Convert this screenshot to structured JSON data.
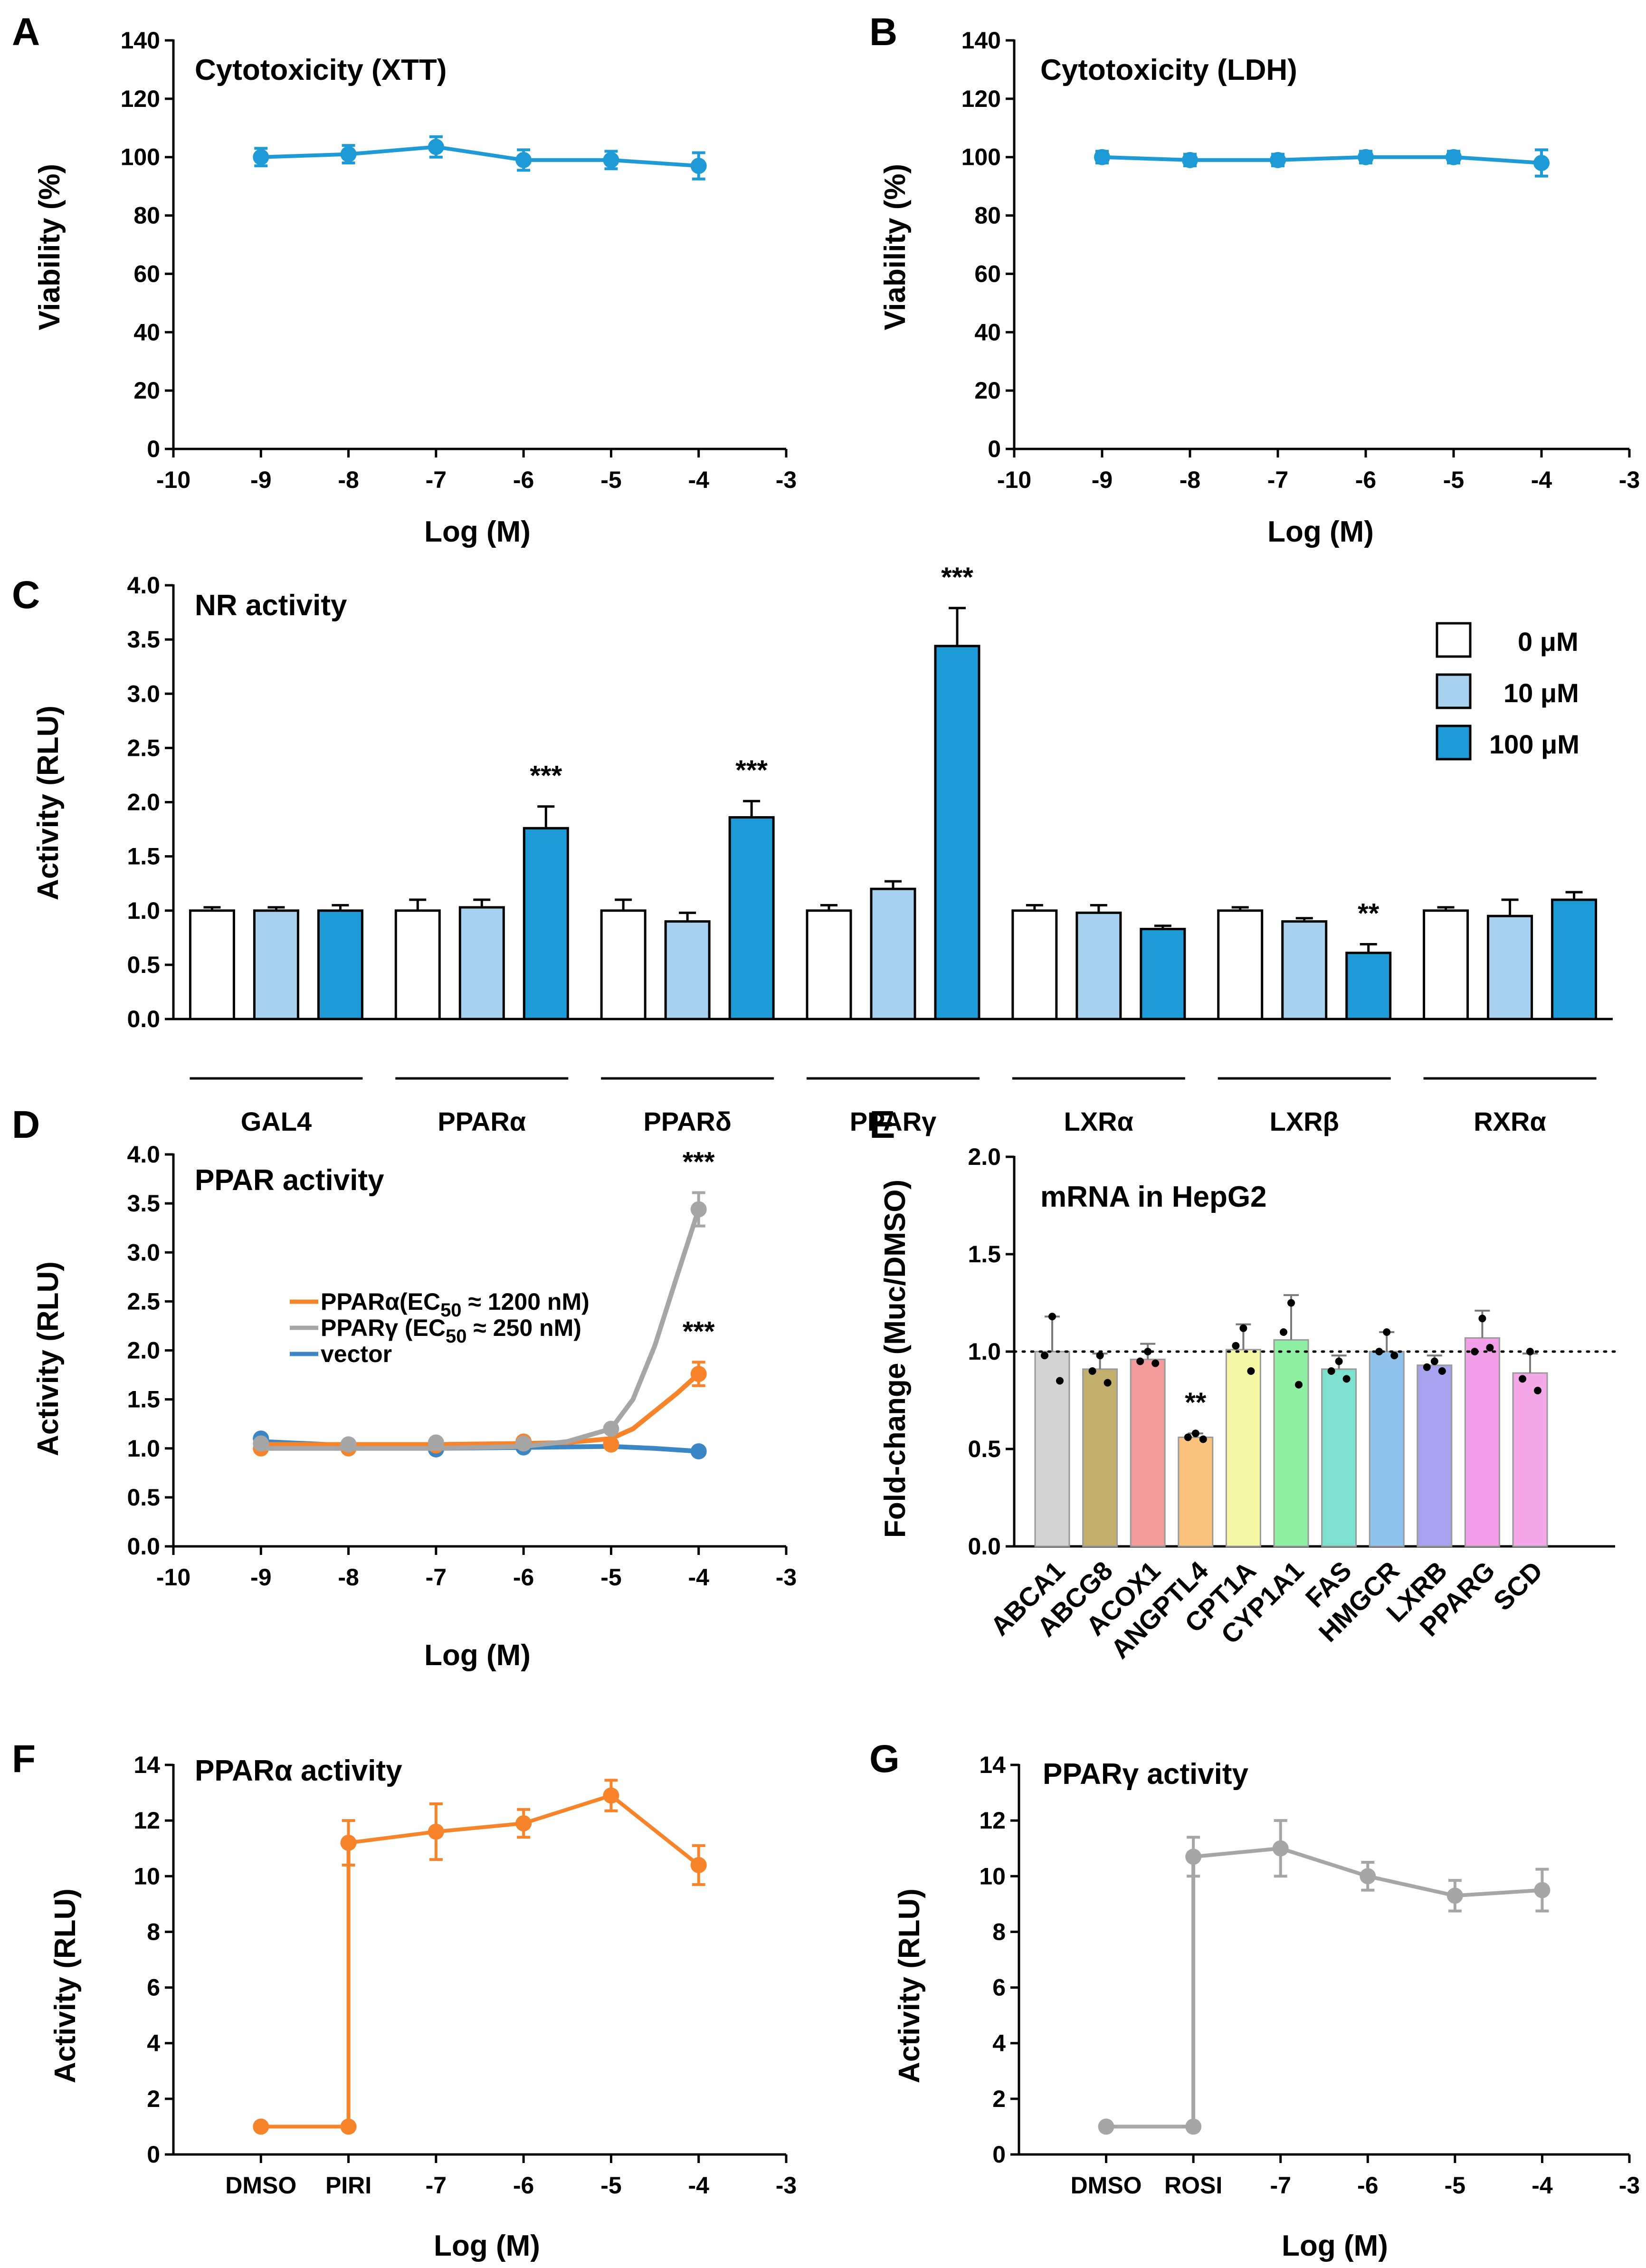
{
  "colors": {
    "blue": "#1e9ad6",
    "light_blue": "#a7d1ee",
    "orange": "#f7842a",
    "gray": "#a6a6a6",
    "vector_blue": "#3b86c5"
  },
  "chart_data": [
    {
      "id": "A",
      "panel_label": "A",
      "type": "line",
      "title": "Cytotoxicity (XTT)",
      "xlabel": "Log (M)",
      "ylabel": "Viability (%)",
      "xlim": [
        -10,
        -3
      ],
      "ylim": [
        0,
        140
      ],
      "xticks": [
        -10,
        -9,
        -8,
        -7,
        -6,
        -5,
        -4,
        -3
      ],
      "yticks": [
        0,
        20,
        40,
        60,
        80,
        100,
        120,
        140
      ],
      "series": [
        {
          "name": "XTT",
          "color": "#1e9ad6",
          "x": [
            -9,
            -8,
            -7,
            -6,
            -5,
            -4
          ],
          "y": [
            100,
            101,
            103.5,
            99,
            99,
            97
          ],
          "err": [
            3,
            3,
            3.5,
            3.5,
            3,
            4.5
          ]
        }
      ]
    },
    {
      "id": "B",
      "panel_label": "B",
      "type": "line",
      "title": "Cytotoxicity (LDH)",
      "xlabel": "Log (M)",
      "ylabel": "Viability (%)",
      "xlim": [
        -10,
        -3
      ],
      "ylim": [
        0,
        140
      ],
      "xticks": [
        -10,
        -9,
        -8,
        -7,
        -6,
        -5,
        -4,
        -3
      ],
      "yticks": [
        0,
        20,
        40,
        60,
        80,
        100,
        120,
        140
      ],
      "series": [
        {
          "name": "LDH",
          "color": "#1e9ad6",
          "x": [
            -9,
            -8,
            -7,
            -6,
            -5,
            -4
          ],
          "y": [
            100,
            99,
            99,
            100,
            100,
            98
          ],
          "err": [
            2,
            2,
            2,
            2,
            2,
            4.5
          ]
        }
      ]
    },
    {
      "id": "C",
      "panel_label": "C",
      "type": "bar",
      "title": "NR activity",
      "ylabel": "Activity (RLU)",
      "ylim": [
        0,
        4.0
      ],
      "yticks": [
        0.0,
        0.5,
        1.0,
        1.5,
        2.0,
        2.5,
        3.0,
        3.5,
        4.0
      ],
      "categories": [
        "GAL4",
        "PPARα",
        "PPARδ",
        "PPARγ",
        "LXRα",
        "LXRβ",
        "RXRα"
      ],
      "series": [
        {
          "name": "0 μM",
          "color": "#ffffff",
          "values": [
            1.0,
            1.0,
            1.0,
            1.0,
            1.0,
            1.0,
            1.0
          ],
          "err": [
            0.03,
            0.1,
            0.1,
            0.05,
            0.05,
            0.03,
            0.03
          ]
        },
        {
          "name": "10 μM",
          "color": "#a7d1ee",
          "values": [
            1.0,
            1.03,
            0.9,
            1.2,
            0.98,
            0.9,
            0.95
          ],
          "err": [
            0.03,
            0.07,
            0.08,
            0.07,
            0.07,
            0.03,
            0.15
          ]
        },
        {
          "name": "100 μM",
          "color": "#1e9ad6",
          "values": [
            1.0,
            1.76,
            1.86,
            3.44,
            0.83,
            0.61,
            1.1
          ],
          "err": [
            0.05,
            0.2,
            0.15,
            0.35,
            0.03,
            0.08,
            0.07
          ]
        }
      ],
      "significance": [
        {
          "category": "PPARα",
          "series": "100 μM",
          "label": "***"
        },
        {
          "category": "PPARδ",
          "series": "100 μM",
          "label": "***"
        },
        {
          "category": "PPARγ",
          "series": "100 μM",
          "label": "***"
        },
        {
          "category": "LXRβ",
          "series": "100 μM",
          "label": "**"
        }
      ]
    },
    {
      "id": "D",
      "panel_label": "D",
      "type": "line",
      "title": "PPAR activity",
      "xlabel": "Log (M)",
      "ylabel": "Activity (RLU)",
      "xlim": [
        -10,
        -3
      ],
      "ylim": [
        0,
        4.0
      ],
      "xticks": [
        -10,
        -9,
        -8,
        -7,
        -6,
        -5,
        -4,
        -3
      ],
      "yticks": [
        0.0,
        0.5,
        1.0,
        1.5,
        2.0,
        2.5,
        3.0,
        3.5,
        4.0
      ],
      "legend": [
        {
          "name": "PPARα",
          "text_before": "PPARα(EC",
          "subscript": "50",
          "text_after": " ≈ 1200 nM)",
          "color": "#f7842a"
        },
        {
          "name": "PPARγ",
          "text_before": "PPARγ (EC",
          "subscript": "50",
          "text_after": " ≈ 250 nM)",
          "color": "#a6a6a6"
        },
        {
          "name": "vector",
          "text_before": "vector",
          "subscript": "",
          "text_after": "",
          "color": "#3b86c5"
        }
      ],
      "series": [
        {
          "name": "vector",
          "color": "#3b86c5",
          "x": [
            -9,
            -8,
            -7,
            -6,
            -5,
            -4
          ],
          "y": [
            1.1,
            1.04,
            0.99,
            1.01,
            1.04,
            0.97
          ],
          "err": [
            0,
            0,
            0,
            0,
            0,
            0
          ],
          "curve": [
            [
              -9,
              1.07
            ],
            [
              -8,
              1.03
            ],
            [
              -7,
              1.0
            ],
            [
              -6,
              1.01
            ],
            [
              -5,
              1.02
            ],
            [
              -4.5,
              1.0
            ],
            [
              -4,
              0.97
            ]
          ]
        },
        {
          "name": "PPARα",
          "color": "#f7842a",
          "x": [
            -9,
            -8,
            -7,
            -6,
            -5,
            -4
          ],
          "y": [
            1.0,
            1.0,
            1.03,
            1.07,
            1.04,
            1.76
          ],
          "err": [
            0,
            0,
            0,
            0,
            0,
            0.12
          ],
          "curve": [
            [
              -9,
              1.04
            ],
            [
              -8,
              1.04
            ],
            [
              -7,
              1.04
            ],
            [
              -6,
              1.05
            ],
            [
              -5.5,
              1.06
            ],
            [
              -5,
              1.1
            ],
            [
              -4.75,
              1.2
            ],
            [
              -4.5,
              1.38
            ],
            [
              -4.25,
              1.56
            ],
            [
              -4,
              1.76
            ]
          ]
        },
        {
          "name": "PPARγ",
          "color": "#a6a6a6",
          "x": [
            -9,
            -8,
            -7,
            -6,
            -5,
            -4
          ],
          "y": [
            1.05,
            1.04,
            1.06,
            1.05,
            1.2,
            3.44
          ],
          "err": [
            0,
            0,
            0,
            0,
            0,
            0.17
          ],
          "curve": [
            [
              -9,
              1.0
            ],
            [
              -8,
              1.0
            ],
            [
              -7,
              1.0
            ],
            [
              -6,
              1.02
            ],
            [
              -5.5,
              1.07
            ],
            [
              -5,
              1.2
            ],
            [
              -4.75,
              1.5
            ],
            [
              -4.5,
              2.05
            ],
            [
              -4.25,
              2.75
            ],
            [
              -4,
              3.44
            ]
          ]
        }
      ],
      "significance": [
        {
          "series": "PPARγ",
          "x": -4,
          "label": "***"
        },
        {
          "series": "PPARα",
          "x": -4,
          "label": "***"
        }
      ]
    },
    {
      "id": "E",
      "panel_label": "E",
      "type": "bar",
      "title": "mRNA in HepG2",
      "ylabel": "Fold-change (Muc/DMSO)",
      "ylim": [
        0,
        2.0
      ],
      "yticks": [
        0.0,
        0.5,
        1.0,
        1.5,
        2.0
      ],
      "reference_line": 1.0,
      "categories": [
        "ABCA1",
        "ABCG8",
        "ACOX1",
        "ANGPTL4",
        "CPT1A",
        "CYP1A1",
        "FAS",
        "HMGCR",
        "LXRB",
        "PPARG",
        "SCD"
      ],
      "colors": [
        "#d3d3d3",
        "#c2ae6d",
        "#f39b9b",
        "#fbc27e",
        "#f3f7a6",
        "#8ff0a4",
        "#7ee0cf",
        "#8fc3ee",
        "#a8a3ee",
        "#f39ee8",
        "#f5a8e8"
      ],
      "values": [
        1.0,
        0.91,
        0.96,
        0.56,
        1.01,
        1.06,
        0.91,
        1.0,
        0.93,
        1.07,
        0.89
      ],
      "err": [
        0.18,
        0.08,
        0.08,
        0.02,
        0.13,
        0.23,
        0.07,
        0.1,
        0.05,
        0.14,
        0.1
      ],
      "points": [
        [
          1.18,
          0.98,
          0.85
        ],
        [
          0.98,
          0.9,
          0.84
        ],
        [
          1.0,
          0.95,
          0.94
        ],
        [
          0.58,
          0.56,
          0.55
        ],
        [
          1.12,
          1.03,
          0.9
        ],
        [
          1.25,
          1.1,
          0.83
        ],
        [
          0.95,
          0.9,
          0.86
        ],
        [
          1.1,
          1.0,
          0.98
        ],
        [
          0.95,
          0.92,
          0.9
        ],
        [
          1.17,
          1.0,
          1.02
        ],
        [
          1.0,
          0.86,
          0.8
        ]
      ],
      "significance": [
        {
          "category": "ANGPTL4",
          "label": "**"
        }
      ]
    },
    {
      "id": "F",
      "panel_label": "F",
      "type": "line",
      "title": "PPARα activity",
      "xlabel": "Log (M)",
      "ylabel": "Activity (RLU)",
      "xlim": [
        -10,
        -3
      ],
      "ylim": [
        0,
        14
      ],
      "xticks": [
        -9,
        -8,
        -7,
        -6,
        -5,
        -4,
        -3
      ],
      "xtick_labels": [
        "DMSO",
        "PIRI",
        "-7",
        "-6",
        "-5",
        "-4",
        "-3"
      ],
      "yticks": [
        0,
        2,
        4,
        6,
        8,
        10,
        12,
        14
      ],
      "series": [
        {
          "name": "PPARα",
          "color": "#f7842a",
          "x": [
            -9,
            -8,
            -8,
            -7,
            -6,
            -5,
            -4
          ],
          "y": [
            1.0,
            1.0,
            11.2,
            11.6,
            11.9,
            12.9,
            10.4
          ],
          "err": [
            0,
            0,
            0.8,
            1.0,
            0.5,
            0.55,
            0.7
          ]
        }
      ]
    },
    {
      "id": "G",
      "panel_label": "G",
      "type": "line",
      "title": "PPARγ activity",
      "xlabel": "Log (M)",
      "ylabel": "Activity (RLU)",
      "xlim": [
        -10,
        -3
      ],
      "ylim": [
        0,
        14
      ],
      "xticks": [
        -9,
        -8,
        -7,
        -6,
        -5,
        -4,
        -3
      ],
      "xtick_labels": [
        "DMSO",
        "ROSI",
        "-7",
        "-6",
        "-5",
        "-4",
        "-3"
      ],
      "yticks": [
        0,
        2,
        4,
        6,
        8,
        10,
        12,
        14
      ],
      "series": [
        {
          "name": "PPARγ",
          "color": "#a6a6a6",
          "x": [
            -9,
            -8,
            -8,
            -7,
            -6,
            -5,
            -4
          ],
          "y": [
            1.0,
            1.0,
            10.7,
            11.0,
            10.0,
            9.3,
            9.5
          ],
          "err": [
            0,
            0,
            0.7,
            1.0,
            0.5,
            0.55,
            0.75
          ]
        }
      ]
    }
  ]
}
